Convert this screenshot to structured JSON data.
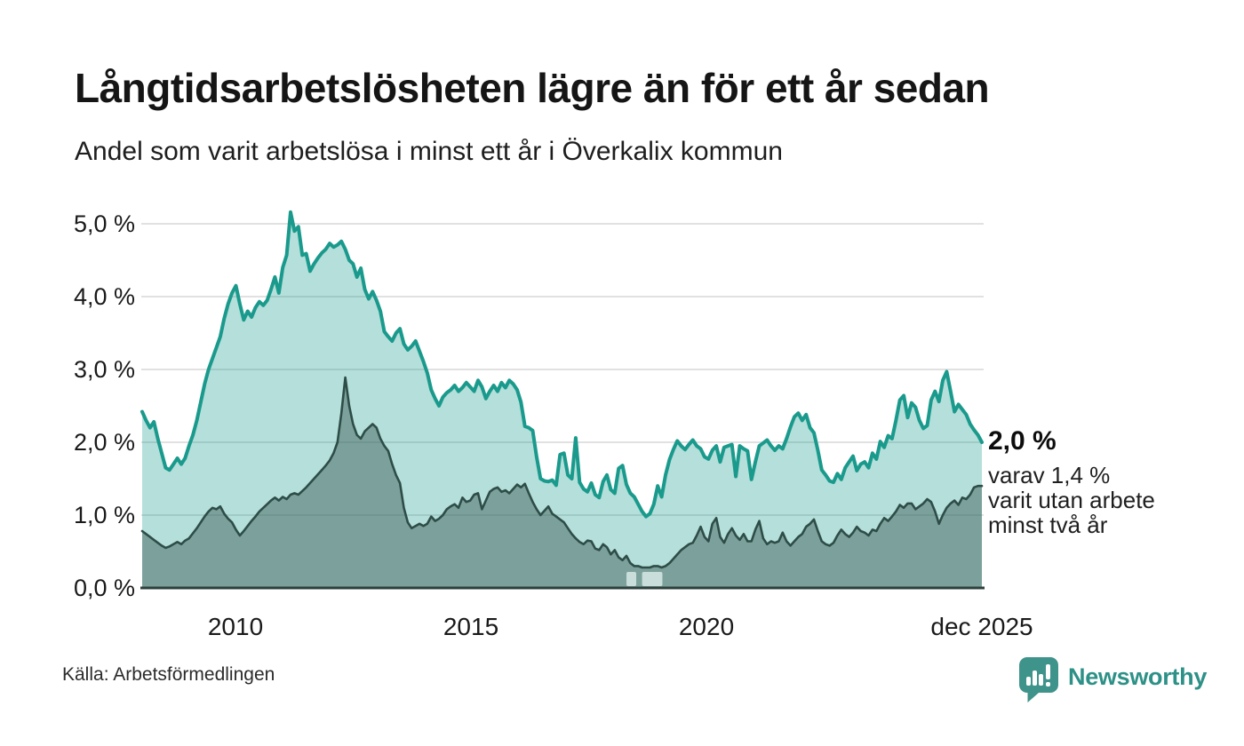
{
  "header": {
    "title": "Långtidsarbetslösheten lägre än för ett år sedan",
    "subtitle": "Andel som varit arbetslösa i minst ett år i Överkalix kommun"
  },
  "chart_data": {
    "type": "area",
    "title": "Långtidsarbetslösheten lägre än för ett år sedan",
    "subtitle": "Andel som varit arbetslösa i minst ett år i Överkalix kommun",
    "unit": "%",
    "frequency": "monthly",
    "x_range": [
      "jan 2008",
      "dec 2025"
    ],
    "ylim": [
      0,
      5.3
    ],
    "grid": "horizontal",
    "y_ticks": [
      "5,0 %",
      "4,0 %",
      "3,0 %",
      "2,0 %",
      "1,0 %",
      "0,0 %"
    ],
    "y_tick_values": [
      5,
      4,
      3,
      2,
      1,
      0
    ],
    "x_ticks": [
      "2010",
      "2015",
      "2020",
      "dec 2025"
    ],
    "x_tick_years": [
      2010,
      2015,
      2020,
      2025.92
    ],
    "series": [
      {
        "name": "Andel arbetslösa minst ett år",
        "line_color": "#1a9a8c",
        "fill_color": "rgba(26,154,140,0.32)",
        "end_value": 2.0,
        "values": [
          2.42,
          2.3,
          2.2,
          2.28,
          2.05,
          1.85,
          1.65,
          1.62,
          1.7,
          1.78,
          1.7,
          1.78,
          1.95,
          2.1,
          2.3,
          2.55,
          2.8,
          3.0,
          3.15,
          3.3,
          3.45,
          3.7,
          3.9,
          4.05,
          4.15,
          3.9,
          3.68,
          3.8,
          3.72,
          3.85,
          3.93,
          3.88,
          3.95,
          4.1,
          4.27,
          4.05,
          4.4,
          4.57,
          5.16,
          4.9,
          4.96,
          4.57,
          4.59,
          4.35,
          4.45,
          4.53,
          4.6,
          4.65,
          4.73,
          4.68,
          4.71,
          4.76,
          4.65,
          4.5,
          4.45,
          4.27,
          4.39,
          4.1,
          3.97,
          4.07,
          3.95,
          3.8,
          3.52,
          3.45,
          3.39,
          3.5,
          3.56,
          3.35,
          3.27,
          3.32,
          3.39,
          3.25,
          3.11,
          2.95,
          2.72,
          2.6,
          2.5,
          2.62,
          2.68,
          2.72,
          2.78,
          2.7,
          2.75,
          2.82,
          2.76,
          2.7,
          2.85,
          2.76,
          2.6,
          2.7,
          2.78,
          2.7,
          2.82,
          2.75,
          2.85,
          2.8,
          2.72,
          2.55,
          2.22,
          2.2,
          2.16,
          1.8,
          1.5,
          1.47,
          1.46,
          1.48,
          1.41,
          1.83,
          1.85,
          1.55,
          1.5,
          2.06,
          1.45,
          1.36,
          1.32,
          1.44,
          1.28,
          1.24,
          1.46,
          1.55,
          1.35,
          1.3,
          1.64,
          1.68,
          1.42,
          1.3,
          1.25,
          1.15,
          1.05,
          0.98,
          1.02,
          1.15,
          1.4,
          1.25,
          1.55,
          1.76,
          1.9,
          2.02,
          1.95,
          1.9,
          1.97,
          2.03,
          1.95,
          1.91,
          1.8,
          1.77,
          1.89,
          1.95,
          1.73,
          1.93,
          1.95,
          1.97,
          1.53,
          1.95,
          1.91,
          1.88,
          1.49,
          1.73,
          1.95,
          1.99,
          2.03,
          1.95,
          1.89,
          1.95,
          1.91,
          2.05,
          2.21,
          2.35,
          2.4,
          2.3,
          2.38,
          2.2,
          2.13,
          1.89,
          1.62,
          1.55,
          1.47,
          1.45,
          1.57,
          1.49,
          1.65,
          1.73,
          1.81,
          1.61,
          1.7,
          1.73,
          1.65,
          1.85,
          1.77,
          2.01,
          1.93,
          2.09,
          2.05,
          2.3,
          2.58,
          2.64,
          2.34,
          2.54,
          2.48,
          2.3,
          2.19,
          2.23,
          2.58,
          2.7,
          2.56,
          2.85,
          2.97,
          2.7,
          2.42,
          2.52,
          2.45,
          2.38,
          2.25,
          2.17,
          2.1,
          2.0
        ]
      },
      {
        "name": "varav utan arbete minst två år",
        "line_color": "#2e4d48",
        "fill_color": "rgba(45,77,72,0.42)",
        "end_value": 1.4,
        "values": [
          0.78,
          0.74,
          0.7,
          0.66,
          0.62,
          0.58,
          0.55,
          0.57,
          0.6,
          0.63,
          0.6,
          0.65,
          0.68,
          0.75,
          0.82,
          0.9,
          0.98,
          1.05,
          1.1,
          1.08,
          1.12,
          1.02,
          0.95,
          0.9,
          0.8,
          0.72,
          0.78,
          0.85,
          0.92,
          0.98,
          1.05,
          1.1,
          1.15,
          1.2,
          1.24,
          1.2,
          1.25,
          1.22,
          1.28,
          1.3,
          1.28,
          1.33,
          1.38,
          1.44,
          1.5,
          1.56,
          1.62,
          1.68,
          1.75,
          1.85,
          2.0,
          2.4,
          2.89,
          2.5,
          2.25,
          2.1,
          2.05,
          2.15,
          2.2,
          2.25,
          2.2,
          2.05,
          1.95,
          1.88,
          1.7,
          1.55,
          1.44,
          1.1,
          0.9,
          0.82,
          0.85,
          0.88,
          0.85,
          0.88,
          0.98,
          0.92,
          0.95,
          1.0,
          1.08,
          1.12,
          1.15,
          1.1,
          1.24,
          1.18,
          1.2,
          1.28,
          1.3,
          1.08,
          1.2,
          1.32,
          1.36,
          1.38,
          1.32,
          1.34,
          1.3,
          1.36,
          1.42,
          1.38,
          1.43,
          1.3,
          1.18,
          1.08,
          1.0,
          1.06,
          1.12,
          1.02,
          0.98,
          0.94,
          0.9,
          0.82,
          0.74,
          0.68,
          0.63,
          0.6,
          0.65,
          0.64,
          0.54,
          0.52,
          0.6,
          0.56,
          0.46,
          0.52,
          0.42,
          0.38,
          0.44,
          0.34,
          0.3,
          0.3,
          0.28,
          0.28,
          0.28,
          0.3,
          0.3,
          0.28,
          0.3,
          0.34,
          0.4,
          0.46,
          0.52,
          0.56,
          0.6,
          0.62,
          0.72,
          0.84,
          0.7,
          0.64,
          0.88,
          0.96,
          0.7,
          0.62,
          0.74,
          0.82,
          0.72,
          0.66,
          0.74,
          0.64,
          0.64,
          0.8,
          0.92,
          0.68,
          0.6,
          0.64,
          0.62,
          0.64,
          0.76,
          0.64,
          0.58,
          0.64,
          0.7,
          0.74,
          0.84,
          0.88,
          0.94,
          0.78,
          0.64,
          0.6,
          0.58,
          0.62,
          0.72,
          0.8,
          0.74,
          0.7,
          0.76,
          0.84,
          0.78,
          0.76,
          0.72,
          0.8,
          0.78,
          0.88,
          0.96,
          0.92,
          0.98,
          1.05,
          1.14,
          1.1,
          1.16,
          1.16,
          1.08,
          1.12,
          1.16,
          1.22,
          1.18,
          1.05,
          0.88,
          1.0,
          1.1,
          1.16,
          1.2,
          1.14,
          1.24,
          1.22,
          1.28,
          1.38,
          1.4,
          1.4
        ]
      }
    ],
    "masked_ranges": [
      {
        "from_index": 124,
        "to_index": 126.5,
        "top_value": 0.22
      },
      {
        "from_index": 128,
        "to_index": 133.2,
        "top_value": 0.22
      }
    ],
    "annotation": {
      "value": "2,0 %",
      "lines": [
        "varav 1,4 %",
        "varit utan arbete",
        "minst två år"
      ]
    }
  },
  "colors": {
    "gridline": "#d7d7d7",
    "baseline": "#2c3f3b",
    "masked_band": "#c9dedb",
    "brand_teal": "#3e938b"
  },
  "footer": {
    "source": "Källa: Arbetsförmedlingen",
    "brand": "Newsworthy"
  }
}
